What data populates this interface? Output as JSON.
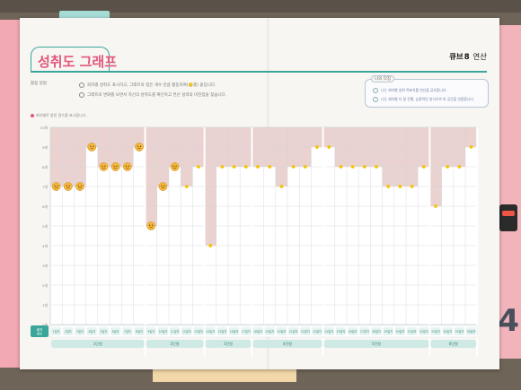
{
  "page": {
    "title": "성취도 그래프",
    "brand_prefix": "큐브",
    "brand_suffix": "연산",
    "howto_label": "활용 방법",
    "howto": [
      "회차별 성취도 표시하고, 그래프의 점은 개수 만큼 활동하여(🙂를) 붙입니다.",
      "그래프의 변화를 보면서 자신의 성취도를 확인하고 연산 실력의 미진점을 찾습니다."
    ],
    "goal_label": "나의 다짐",
    "goals": [
      "나는 회차별 성취 목표치를 연산을 공부합니다.",
      "나는 회차별 더 잘 진행, 습관적인 방식으로 바 공간을 연합합니다."
    ],
    "graph_caption": "회차별로 맞힌 점수를 표시합니다."
  },
  "chart_data": {
    "type": "bar",
    "y_axis_labels": [
      "10개",
      "9개",
      "8개",
      "7개",
      "6개",
      "5개",
      "4개",
      "3개",
      "2개",
      "1개",
      "0개"
    ],
    "ylim": [
      0,
      10
    ],
    "corner_label": "회차\n점수",
    "grid": true,
    "categories": [
      "1일차",
      "2일차",
      "3일차",
      "4일차",
      "5일차",
      "6일차",
      "7일차",
      "8일차",
      "9일차",
      "10일차",
      "11일차",
      "12일차",
      "13일차",
      "14일차",
      "15일차",
      "16일차",
      "17일차",
      "18일차",
      "19일차",
      "20일차",
      "21일차",
      "22일차",
      "23일차",
      "24일차",
      "25일차",
      "26일차",
      "27일차",
      "28일차",
      "29일차",
      "30일차",
      "31일차",
      "32일차",
      "33일차",
      "34일차",
      "35일차",
      "36일차"
    ],
    "values": [
      7,
      7,
      7,
      9,
      8,
      8,
      8,
      9,
      5,
      7,
      8,
      7,
      8,
      4,
      8,
      8,
      8,
      8,
      8,
      7,
      8,
      8,
      9,
      9,
      8,
      8,
      8,
      8,
      7,
      7,
      7,
      8,
      6,
      8,
      8,
      9
    ],
    "sticker_values": [
      true,
      true,
      true,
      true,
      true,
      true,
      true,
      true,
      true,
      true,
      true,
      false,
      false,
      false,
      false,
      false,
      false,
      false,
      false,
      false,
      false,
      false,
      false,
      false,
      false,
      false,
      false,
      false,
      false,
      false,
      false,
      false,
      false,
      false,
      false,
      false
    ],
    "groups": [
      {
        "label": "1단원",
        "count": 8
      },
      {
        "label": "2단원",
        "count": 5
      },
      {
        "label": "3단원",
        "count": 4
      },
      {
        "label": "4단원",
        "count": 6
      },
      {
        "label": "5단원",
        "count": 9
      },
      {
        "label": "6단원",
        "count": 4
      }
    ],
    "colors": {
      "bar": "#ffffff",
      "above": "#e9d2cf",
      "grid": "#cfd6dd",
      "group_bg": "#cfe9e4",
      "group_text": "#2c7d72",
      "point": "#f5c400",
      "sticker": "#f6b73c"
    }
  }
}
